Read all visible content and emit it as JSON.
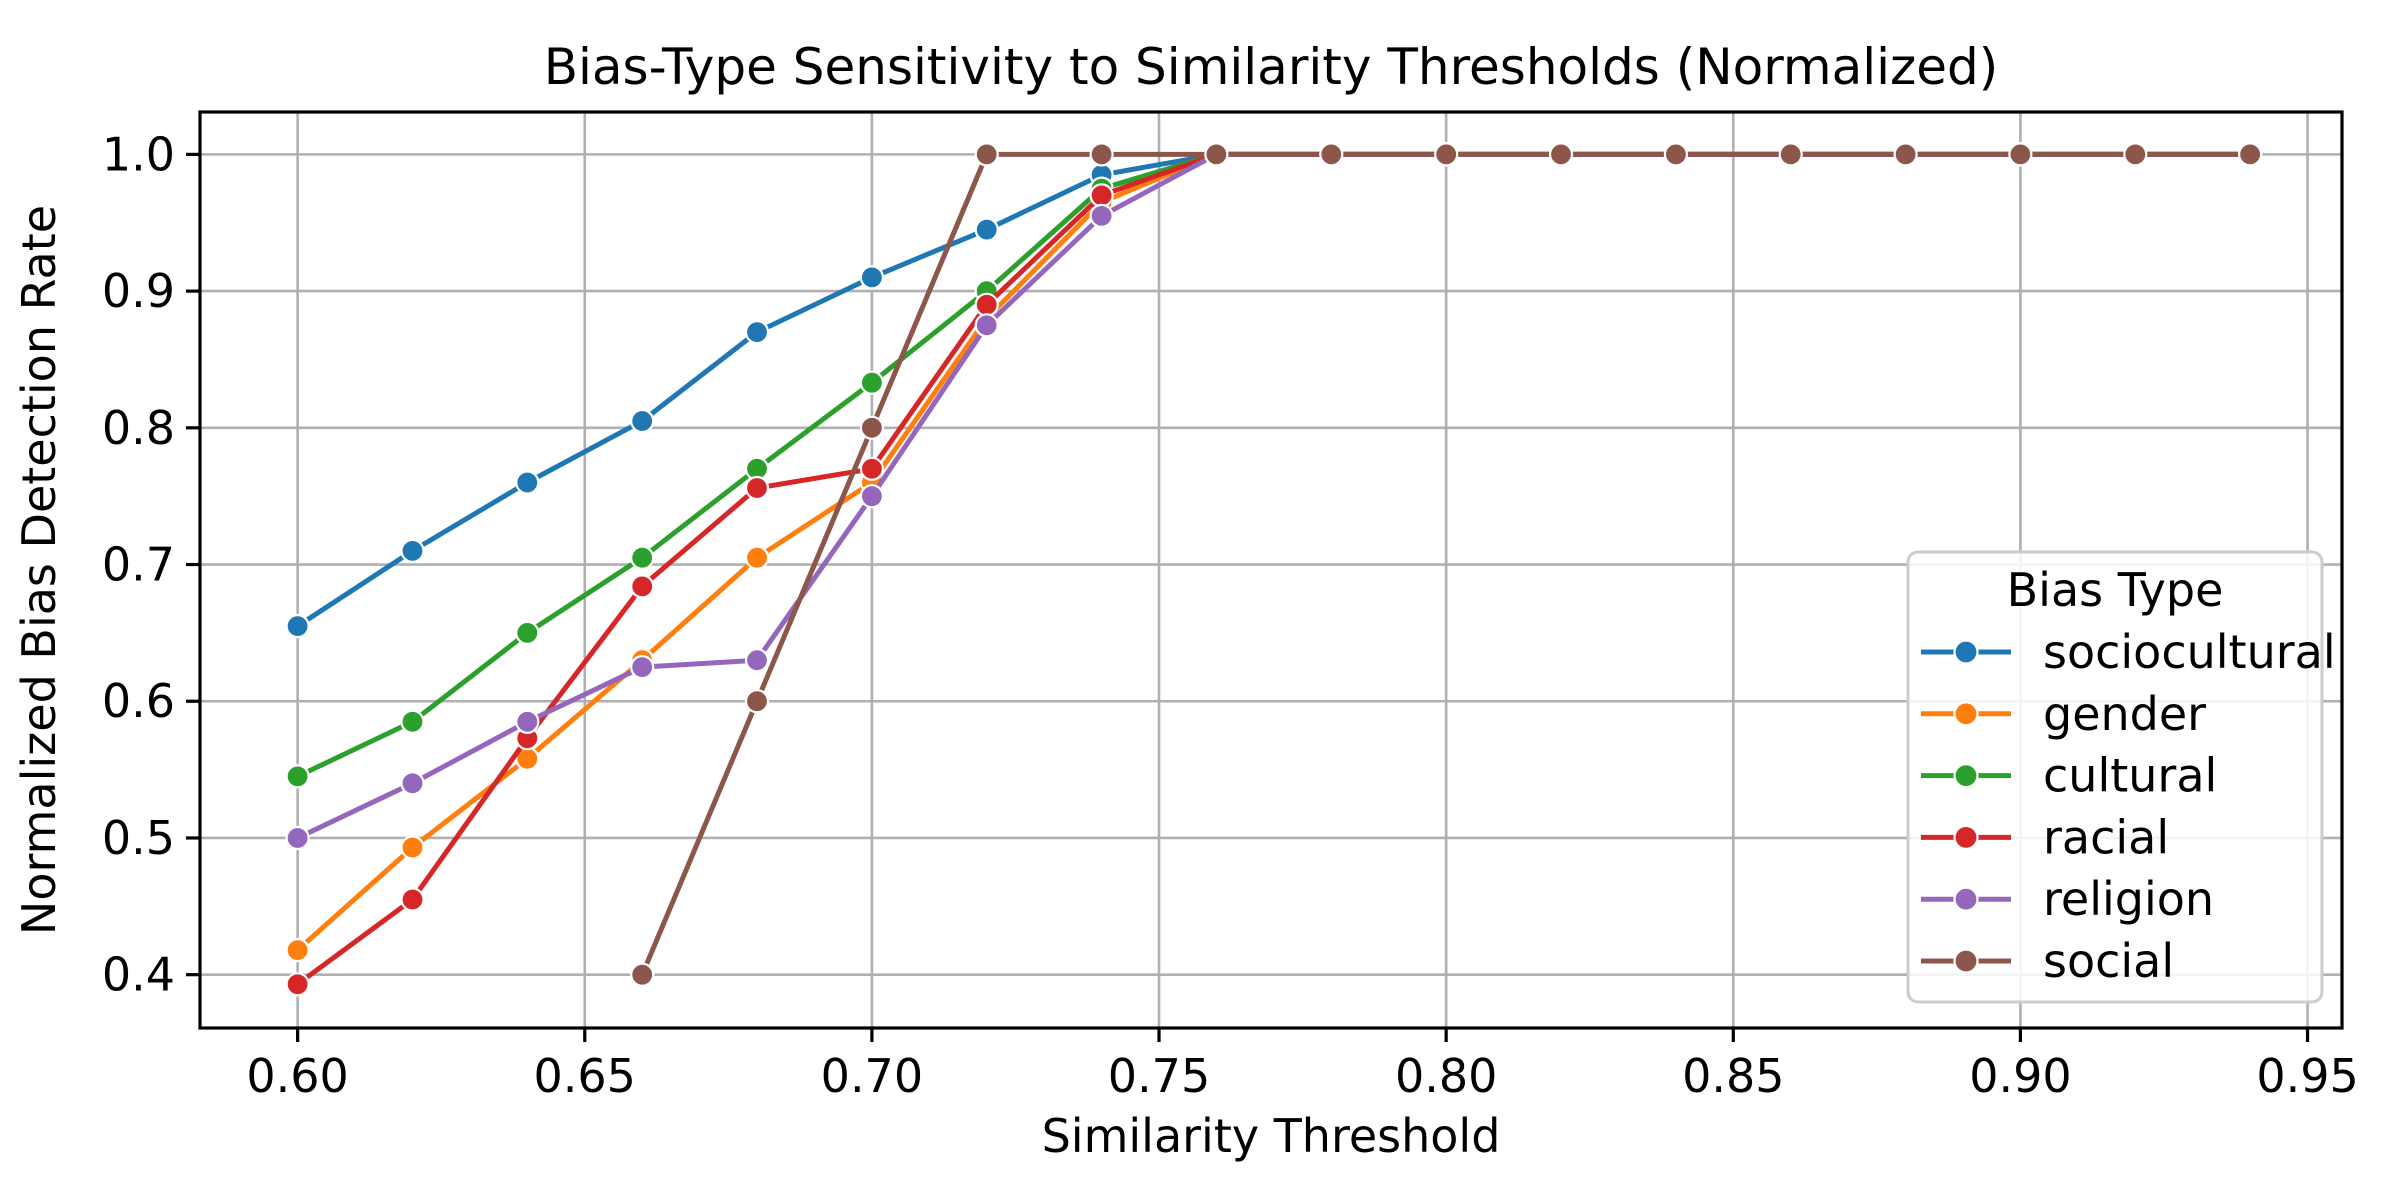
{
  "chart_data": {
    "type": "line",
    "title": "Bias-Type Sensitivity to Similarity Thresholds (Normalized)",
    "xlabel": "Similarity Threshold",
    "ylabel": "Normalized Bias Detection Rate",
    "grid": true,
    "xlim": [
      0.583,
      0.956
    ],
    "ylim": [
      0.361,
      1.031
    ],
    "xticks": {
      "values": [
        0.6,
        0.65,
        0.7,
        0.75,
        0.8,
        0.85,
        0.9,
        0.95
      ],
      "labels": [
        "0.60",
        "0.65",
        "0.70",
        "0.75",
        "0.80",
        "0.85",
        "0.90",
        "0.95"
      ]
    },
    "yticks": {
      "values": [
        0.4,
        0.5,
        0.6,
        0.7,
        0.8,
        0.9,
        1.0
      ],
      "labels": [
        "0.4",
        "0.5",
        "0.6",
        "0.7",
        "0.8",
        "0.9",
        "1.0"
      ]
    },
    "x": [
      0.6,
      0.62,
      0.64,
      0.66,
      0.68,
      0.7,
      0.72,
      0.74,
      0.76,
      0.78,
      0.8,
      0.82,
      0.84,
      0.86,
      0.88,
      0.9,
      0.92,
      0.94
    ],
    "series": [
      {
        "name": "sociocultural",
        "color": "#1f77b4",
        "values": [
          0.655,
          0.71,
          0.76,
          0.805,
          0.87,
          0.91,
          0.945,
          0.985,
          1.0,
          1.0,
          1.0,
          1.0,
          1.0,
          1.0,
          1.0,
          1.0,
          1.0,
          1.0
        ]
      },
      {
        "name": "gender",
        "color": "#ff7f0e",
        "values": [
          0.418,
          0.493,
          0.558,
          0.63,
          0.705,
          0.76,
          0.88,
          0.965,
          1.0,
          1.0,
          1.0,
          1.0,
          1.0,
          1.0,
          1.0,
          1.0,
          1.0,
          1.0
        ]
      },
      {
        "name": "cultural",
        "color": "#2ca02c",
        "values": [
          0.545,
          0.585,
          0.65,
          0.705,
          0.77,
          0.833,
          0.9,
          0.975,
          1.0,
          1.0,
          1.0,
          1.0,
          1.0,
          1.0,
          1.0,
          1.0,
          1.0,
          1.0
        ]
      },
      {
        "name": "racial",
        "color": "#d62728",
        "values": [
          0.393,
          0.455,
          0.573,
          0.684,
          0.756,
          0.77,
          0.89,
          0.97,
          1.0,
          1.0,
          1.0,
          1.0,
          1.0,
          1.0,
          1.0,
          1.0,
          1.0,
          1.0
        ]
      },
      {
        "name": "religion",
        "color": "#9467bd",
        "values": [
          0.5,
          0.54,
          0.585,
          0.625,
          0.63,
          0.75,
          0.875,
          0.955,
          1.0,
          1.0,
          1.0,
          1.0,
          1.0,
          1.0,
          1.0,
          1.0,
          1.0,
          1.0
        ]
      },
      {
        "name": "social",
        "color": "#8c564b",
        "values": [
          null,
          null,
          null,
          0.4,
          0.6,
          0.8,
          1.0,
          1.0,
          1.0,
          1.0,
          1.0,
          1.0,
          1.0,
          1.0,
          1.0,
          1.0,
          1.0,
          1.0
        ]
      }
    ],
    "legend": {
      "title": "Bias Type",
      "position": "right",
      "entries": [
        "sociocultural",
        "gender",
        "cultural",
        "racial",
        "religion",
        "social"
      ]
    },
    "colors": {
      "grid": "#b0b0b0",
      "spine": "#000000",
      "background": "#ffffff",
      "legend_border": "#cccccc"
    }
  }
}
